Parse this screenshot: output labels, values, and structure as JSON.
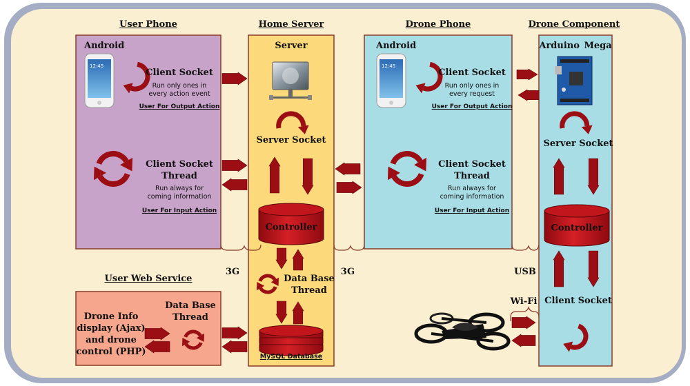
{
  "sections": {
    "user_phone": {
      "header": "User Phone",
      "platform": "Android",
      "client_socket": {
        "title": "Client Socket",
        "note_line1": "Run only ones in",
        "note_line2": "every action event",
        "caption": "User For Output Action"
      },
      "client_socket_thread": {
        "title_line1": "Client Socket",
        "title_line2": "Thread",
        "note_line1": "Run always for",
        "note_line2": "coming information",
        "caption": "User For Input Action"
      }
    },
    "home_server": {
      "header": "Home Server",
      "server_label": "Server",
      "server_socket": "Server Socket",
      "controller": "Controller",
      "db_thread_line1": "Data Base",
      "db_thread_line2": "Thread",
      "database_caption": "MySQL Database"
    },
    "drone_phone": {
      "header": "Drone Phone",
      "platform": "Android",
      "client_socket": {
        "title": "Client Socket",
        "note_line1": "Run only ones in",
        "note_line2": "every request",
        "caption": "User For Output Action"
      },
      "client_socket_thread": {
        "title_line1": "Client Socket",
        "title_line2": "Thread",
        "note_line1": "Run always for",
        "note_line2": "coming information",
        "caption": "User For Input Action"
      }
    },
    "drone_component": {
      "header": "Drone Component",
      "board": "Arduino  Mega",
      "server_socket": "Server Socket",
      "controller": "Controller",
      "client_socket": "Client Socket"
    },
    "user_web_service": {
      "header": "User Web Service",
      "info_line1": "Drone Info",
      "info_line2": "display (Ajax)",
      "info_line3": "and drone",
      "info_line4": "control (PHP)",
      "db_thread_line1": "Data Base",
      "db_thread_line2": "Thread"
    }
  },
  "connections": {
    "user_to_server": "3G",
    "server_to_drone_phone": "3G",
    "drone_phone_to_component": "USB",
    "component_to_drone": "Wi-Fi"
  },
  "colors": {
    "background": "#fbefd2",
    "frame": "#a4adc4",
    "user_phone_box": "#c7a2c9",
    "home_server_box": "#fcd97a",
    "drone_phone_box": "#a8dde6",
    "drone_component_box": "#a8dde6",
    "web_service_box": "#f7a68e",
    "arrow": "#9a0e14",
    "controller_fill": "#c0161c"
  },
  "icons": {
    "phone": "smartphone-icon",
    "server": "server-computer-icon",
    "board": "arduino-board-icon",
    "drone": "quadcopter-drone-icon",
    "loop": "circular-loop-arrow-icon",
    "sync": "circular-sync-arrows-icon"
  }
}
